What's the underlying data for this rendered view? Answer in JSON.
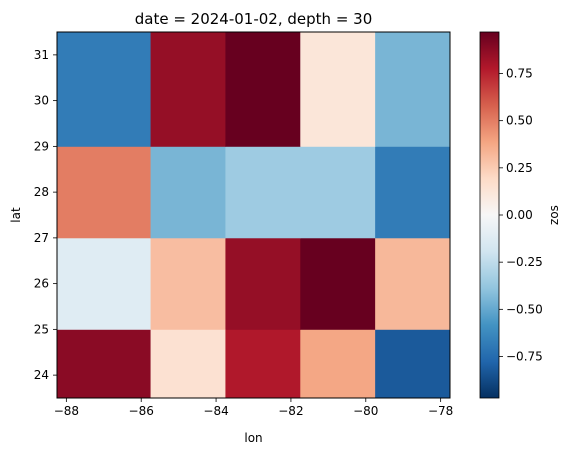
{
  "chart_data": {
    "type": "heatmap",
    "title": "date = 2024-01-02, depth = 30",
    "xlabel": "lon",
    "ylabel": "lat",
    "colorbar_label": "zos",
    "colormap": "RdBu_r",
    "vmin": -0.97,
    "vmax": 0.97,
    "x_edges": [
      -88.25,
      -85.75,
      -83.75,
      -81.75,
      -79.75,
      -77.75
    ],
    "y_edges": [
      23.5,
      25.0,
      27.0,
      29.0,
      31.5
    ],
    "xlim": [
      -88.25,
      -77.75
    ],
    "ylim": [
      23.5,
      31.5
    ],
    "x_ticks": [
      -88,
      -86,
      -84,
      -82,
      -80,
      -78
    ],
    "x_tick_labels": [
      "−88",
      "−86",
      "−84",
      "−82",
      "−80",
      "−78"
    ],
    "y_ticks": [
      24,
      25,
      26,
      27,
      28,
      29,
      30,
      31
    ],
    "y_tick_labels": [
      "24",
      "25",
      "26",
      "27",
      "28",
      "29",
      "30",
      "31"
    ],
    "colorbar_ticks": [
      -0.75,
      -0.5,
      -0.25,
      0.0,
      0.25,
      0.5,
      0.75
    ],
    "colorbar_tick_labels": [
      "−0.75",
      "−0.50",
      "−0.25",
      "0.00",
      "0.25",
      "0.50",
      "0.75"
    ],
    "values": [
      [
        0.88,
        0.15,
        0.78,
        0.38,
        -0.82
      ],
      [
        -0.12,
        0.3,
        0.85,
        0.97,
        0.32
      ],
      [
        0.5,
        -0.45,
        -0.35,
        -0.35,
        -0.68
      ],
      [
        -0.68,
        0.85,
        0.97,
        0.12,
        -0.45
      ]
    ]
  }
}
